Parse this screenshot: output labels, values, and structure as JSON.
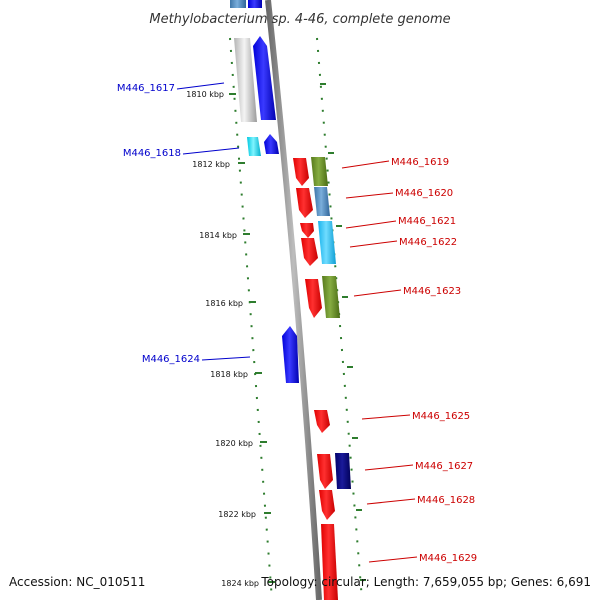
{
  "title": "Methylobacterium sp. 4-46, complete genome",
  "accession": "Accession: NC_010511",
  "topology": "Topology: circular; Length: 7,659,055 bp; Genes: 6,691",
  "colors": {
    "backbone": "#8c8c8c",
    "ruler": "#2e7d2e",
    "reverse_label": "#0000cc",
    "forward_label": "#cc0000"
  },
  "ruler_ticks": [
    "1810 kbp",
    "1812 kbp",
    "1814 kbp",
    "1816 kbp",
    "1818 kbp",
    "1820 kbp",
    "1822 kbp",
    "1824 kbp"
  ],
  "reverse_genes": [
    {
      "label": "M446_1617"
    },
    {
      "label": "M446_1618"
    },
    {
      "label": "M446_1624"
    }
  ],
  "forward_genes": [
    {
      "label": "M446_1619"
    },
    {
      "label": "M446_1620"
    },
    {
      "label": "M446_1621"
    },
    {
      "label": "M446_1622"
    },
    {
      "label": "M446_1623"
    },
    {
      "label": "M446_1625"
    },
    {
      "label": "M446_1627"
    },
    {
      "label": "M446_1628"
    },
    {
      "label": "M446_1629"
    }
  ]
}
